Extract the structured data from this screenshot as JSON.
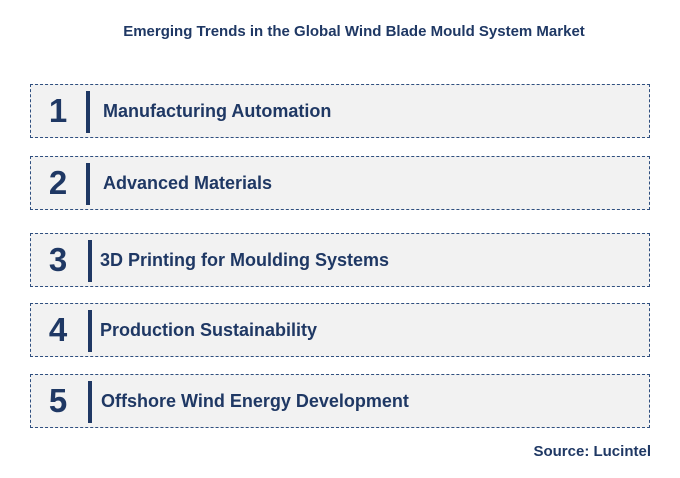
{
  "title": "Emerging Trends in the Global Wind Blade Mould System Market",
  "trends": [
    {
      "number": "1",
      "label": "Manufacturing Automation"
    },
    {
      "number": "2",
      "label": "Advanced Materials"
    },
    {
      "number": "3",
      "label": "3D Printing for Moulding Systems"
    },
    {
      "number": "4",
      "label": "Production Sustainability"
    },
    {
      "number": "5",
      "label": "Offshore Wind Energy Development"
    }
  ],
  "source": "Source: Lucintel",
  "colors": {
    "text": "#1f3864",
    "box_background": "#f2f2f2",
    "box_border": "#2f4f7f"
  }
}
